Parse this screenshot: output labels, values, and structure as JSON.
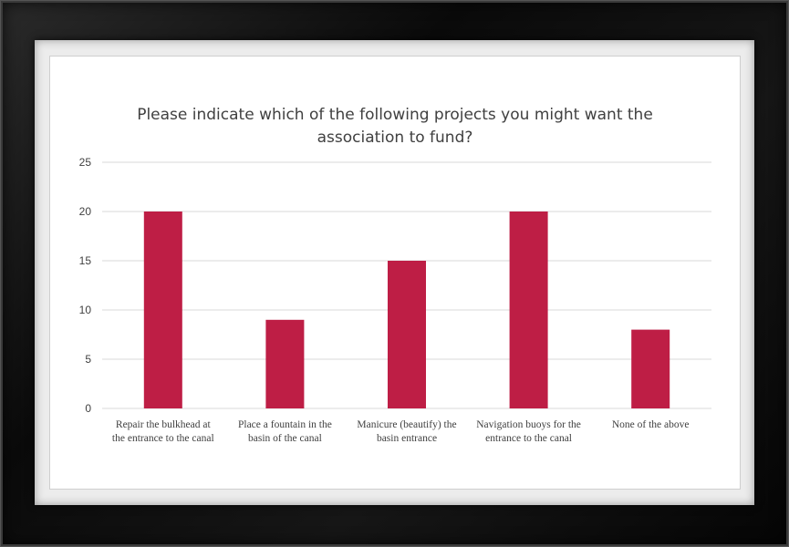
{
  "chart_data": {
    "type": "bar",
    "title_lines": [
      "Please indicate which of the following projects you might want the",
      "association to fund?"
    ],
    "categories": [
      [
        "Repair the bulkhead at",
        "the entrance to the canal"
      ],
      [
        "Place a fountain in the",
        "basin of the canal"
      ],
      [
        "Manicure (beautify) the",
        "basin entrance"
      ],
      [
        "Navigation buoys for the",
        "entrance to the canal"
      ],
      [
        "None of the above"
      ]
    ],
    "values": [
      20,
      9,
      15,
      20,
      8
    ],
    "yticks": [
      0,
      5,
      10,
      15,
      20,
      25
    ],
    "ylim": [
      0,
      25
    ],
    "xlabel": "",
    "ylabel": "",
    "grid": true,
    "legend": "none",
    "bar_color": "#be1e45",
    "grid_color": "#d9d9d9",
    "text_color": "#404040"
  }
}
